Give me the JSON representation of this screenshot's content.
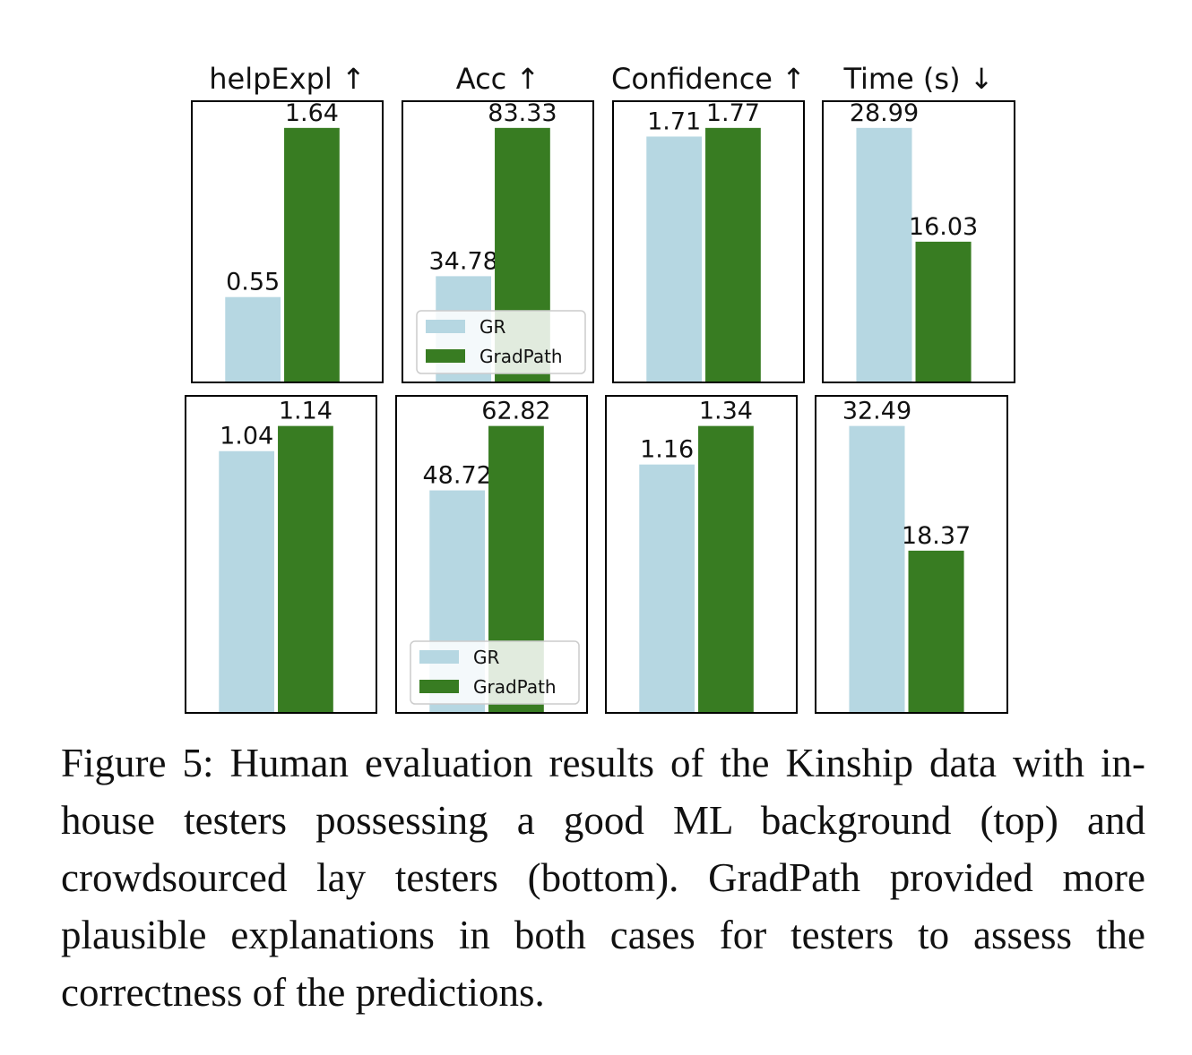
{
  "colors": {
    "GR": "#b6d7e2",
    "GradPath": "#387c22"
  },
  "legend": {
    "gr_label": "GR",
    "gradpath_label": "GradPath"
  },
  "chart_data": [
    {
      "type": "bar",
      "title": "helpExpl ↑",
      "categories": [
        "GR",
        "GradPath"
      ],
      "values": [
        0.55,
        1.64
      ],
      "value_labels": [
        "0.55",
        "1.64"
      ],
      "legend": false
    },
    {
      "type": "bar",
      "title": "Acc ↑",
      "categories": [
        "GR",
        "GradPath"
      ],
      "values": [
        34.78,
        83.33
      ],
      "value_labels": [
        "34.78",
        "83.33"
      ],
      "legend": true
    },
    {
      "type": "bar",
      "title": "Confidence ↑",
      "categories": [
        "GR",
        "GradPath"
      ],
      "values": [
        1.71,
        1.77
      ],
      "value_labels": [
        "1.71",
        "1.77"
      ],
      "legend": false
    },
    {
      "type": "bar",
      "title": "Time (s) ↓",
      "categories": [
        "GR",
        "GradPath"
      ],
      "values": [
        28.99,
        16.03
      ],
      "value_labels": [
        "28.99",
        "16.03"
      ],
      "legend": false
    },
    {
      "type": "bar",
      "title": "",
      "categories": [
        "GR",
        "GradPath"
      ],
      "values": [
        1.04,
        1.14
      ],
      "value_labels": [
        "1.04",
        "1.14"
      ],
      "legend": false
    },
    {
      "type": "bar",
      "title": "",
      "categories": [
        "GR",
        "GradPath"
      ],
      "values": [
        48.72,
        62.82
      ],
      "value_labels": [
        "48.72",
        "62.82"
      ],
      "legend": true
    },
    {
      "type": "bar",
      "title": "",
      "categories": [
        "GR",
        "GradPath"
      ],
      "values": [
        1.16,
        1.34
      ],
      "value_labels": [
        "1.16",
        "1.34"
      ],
      "legend": false
    },
    {
      "type": "bar",
      "title": "",
      "categories": [
        "GR",
        "GradPath"
      ],
      "values": [
        32.49,
        18.37
      ],
      "value_labels": [
        "32.49",
        "18.37"
      ],
      "legend": false
    }
  ],
  "caption": "Figure 5: Human evaluation results of the Kinship data with in-house testers possessing a good ML background (top) and crowdsourced lay testers (bottom). GradPath provided more plausible explanations in both cases for testers to assess the correctness of the predictions."
}
